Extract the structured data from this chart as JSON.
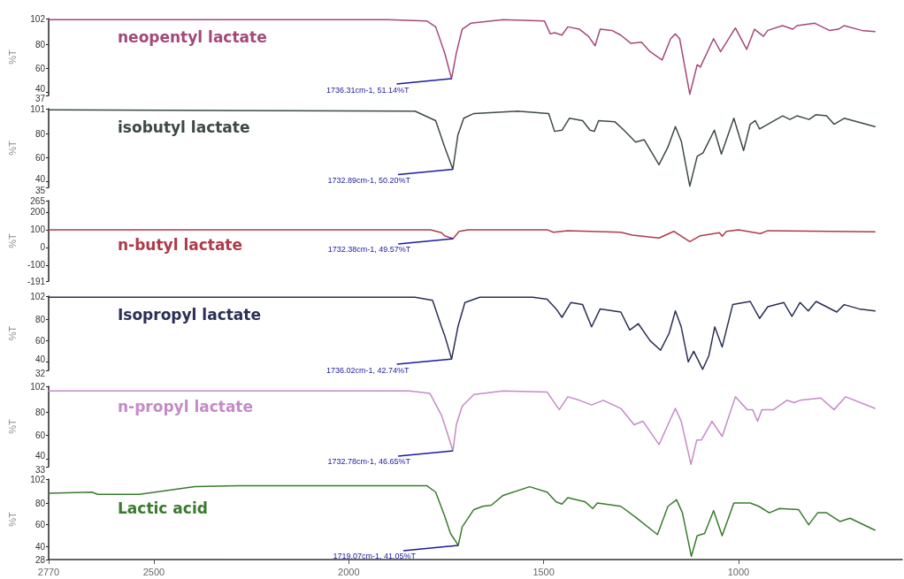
{
  "chart_data": [
    {
      "type": "line",
      "ylabel": "%T",
      "marker": "none",
      "grid": false,
      "tick_labels": "y",
      "xticks": [
        2770,
        2500,
        2000,
        1500,
        1000
      ],
      "ylim": [
        37,
        102
      ],
      "yticks": [
        37,
        40,
        60,
        80,
        102
      ],
      "series": [
        {
          "name": "neopentyl lactate",
          "color": "#a3497a",
          "x": [
            2770,
            1900,
            1800,
            1777,
            1754,
            1736.31,
            1724,
            1709,
            1687,
            1604,
            1498,
            1483,
            1472,
            1453,
            1438,
            1408,
            1385,
            1368,
            1355,
            1325,
            1302,
            1276,
            1249,
            1227,
            1196,
            1174,
            1162,
            1151,
            1125,
            1106,
            1098,
            1064,
            1046,
            1008,
            979,
            959,
            936,
            925,
            887,
            861,
            850,
            804,
            767,
            744,
            729,
            684,
            650
          ],
          "values": [
            101,
            101,
            100,
            95,
            73,
            51.14,
            73,
            93,
            98,
            101,
            100,
            89,
            90,
            88,
            95,
            93,
            87,
            79,
            93,
            92,
            88,
            81,
            82,
            74,
            67,
            85,
            89,
            85,
            38,
            63,
            61,
            85,
            74,
            94,
            76,
            93,
            87,
            92,
            96,
            93,
            96,
            98,
            92,
            93,
            96,
            92,
            91
          ]
        }
      ],
      "annotations": [
        {
          "text": "1736.31cm-1, 51.14%T",
          "x": 1736.31,
          "y": 51.14
        }
      ]
    },
    {
      "type": "line",
      "ylabel": "%T",
      "marker": "none",
      "grid": false,
      "tick_labels": "y",
      "xticks": [
        2770,
        2500,
        2000,
        1500,
        1000
      ],
      "ylim": [
        35,
        101
      ],
      "yticks": [
        35,
        40,
        60,
        80,
        101
      ],
      "series": [
        {
          "name": "isobutyl lactate",
          "color": "#3d4a44",
          "x": [
            2770,
            1830,
            1777,
            1754,
            1732.89,
            1720,
            1705,
            1679,
            1566,
            1487,
            1472,
            1453,
            1434,
            1400,
            1381,
            1370,
            1359,
            1317,
            1294,
            1264,
            1242,
            1204,
            1181,
            1162,
            1147,
            1125,
            1106,
            1091,
            1062,
            1044,
            1012,
            987,
            970,
            957,
            946,
            887,
            868,
            850,
            819,
            801,
            774,
            755,
            729,
            650
          ],
          "values": [
            100,
            99,
            91,
            69,
            50.2,
            79,
            93,
            97,
            99,
            97,
            82,
            83,
            93,
            91,
            83,
            82,
            91,
            90,
            83,
            73,
            75,
            54,
            69,
            86,
            74,
            36,
            61,
            64,
            83,
            63,
            93,
            66,
            88,
            91,
            84,
            95,
            92,
            95,
            92,
            96,
            95,
            88,
            93,
            86
          ]
        }
      ],
      "annotations": [
        {
          "text": "1732.89cm-1, 50.20%T",
          "x": 1732.89,
          "y": 50.2
        }
      ]
    },
    {
      "type": "line",
      "ylabel": "%T",
      "marker": "none",
      "grid": false,
      "tick_labels": "y",
      "xticks": [
        2770,
        2500,
        2000,
        1500,
        1000
      ],
      "ylim": [
        -191,
        265
      ],
      "yticks": [
        -191,
        -100,
        0,
        100,
        200,
        265
      ],
      "series": [
        {
          "name": "n-butyl lactate",
          "color": "#b03a4a",
          "x": [
            2770,
            1790,
            1762,
            1754,
            1732.38,
            1717,
            1694,
            1491,
            1475,
            1438,
            1302,
            1272,
            1204,
            1166,
            1125,
            1098,
            1049,
            1042,
            1031,
            1000,
            944,
            925,
            650
          ],
          "values": [
            100,
            100,
            83,
            66,
            49.57,
            91,
            100,
            100,
            86,
            95,
            86,
            70,
            53,
            91,
            33,
            66,
            83,
            63,
            91,
            100,
            78,
            95,
            88
          ]
        }
      ],
      "annotations": [
        {
          "text": "1732.38cm-1, 49.57%T",
          "x": 1732.38,
          "y": 49.57
        }
      ]
    },
    {
      "type": "line",
      "ylabel": "%T",
      "marker": "none",
      "grid": false,
      "tick_labels": "y",
      "xticks": [
        2770,
        2500,
        2000,
        1500,
        1000
      ],
      "ylim": [
        32,
        102
      ],
      "yticks": [
        32,
        40,
        60,
        80,
        102
      ],
      "series": [
        {
          "name": "Isopropyl lactate",
          "color": "#2a2f55",
          "x": [
            2770,
            1830,
            1785,
            1762,
            1754,
            1736.02,
            1720,
            1702,
            1664,
            1528,
            1491,
            1468,
            1453,
            1430,
            1400,
            1377,
            1355,
            1302,
            1279,
            1257,
            1227,
            1200,
            1178,
            1162,
            1147,
            1129,
            1115,
            1092,
            1076,
            1061,
            1042,
            1015,
            970,
            946,
            925,
            884,
            863,
            842,
            821,
            801,
            748,
            729,
            691,
            650
          ],
          "values": [
            101,
            101,
            98,
            73,
            65,
            42.74,
            73,
            96,
            101,
            101,
            99,
            90,
            82,
            96,
            94,
            73,
            90,
            87,
            70,
            76,
            60,
            51,
            67,
            88,
            73,
            40,
            50,
            33,
            46,
            73,
            54,
            94,
            97,
            81,
            92,
            96,
            83,
            96,
            88,
            97,
            87,
            94,
            90,
            88
          ]
        }
      ],
      "annotations": [
        {
          "text": "1736.02cm-1, 42.74%T",
          "x": 1736.02,
          "y": 42.74
        }
      ]
    },
    {
      "type": "line",
      "ylabel": "%T",
      "marker": "none",
      "grid": false,
      "tick_labels": "y",
      "xticks": [
        2770,
        2500,
        2000,
        1500,
        1000
      ],
      "ylim": [
        33,
        102
      ],
      "yticks": [
        33,
        40,
        60,
        80,
        102
      ],
      "series": [
        {
          "name": "n-propyl lactate",
          "color": "#c58ac8",
          "x": [
            2770,
            1845,
            1792,
            1762,
            1754,
            1732.78,
            1724,
            1709,
            1679,
            1604,
            1491,
            1460,
            1438,
            1408,
            1377,
            1347,
            1302,
            1268,
            1245,
            1204,
            1181,
            1162,
            1147,
            1122,
            1107,
            1095,
            1068,
            1042,
            1008,
            978,
            964,
            951,
            940,
            910,
            876,
            857,
            842,
            789,
            755,
            725,
            650
          ],
          "values": [
            98,
            98,
            96,
            77,
            69,
            46.65,
            69,
            85,
            95,
            98,
            97,
            82,
            93,
            90,
            86,
            90,
            83,
            69,
            72,
            52,
            69,
            83,
            72,
            35,
            56,
            56,
            72,
            59,
            93,
            82,
            82,
            72,
            82,
            82,
            90,
            88,
            90,
            92,
            82,
            93,
            83
          ]
        }
      ],
      "annotations": [
        {
          "text": "1732.78cm-1, 46.65%T",
          "x": 1732.78,
          "y": 46.65
        }
      ]
    },
    {
      "type": "line",
      "ylabel": "%T",
      "marker": "none",
      "grid": false,
      "xlim": [
        2770,
        580
      ],
      "xticks": [
        2770,
        2500,
        2000,
        1500,
        1000
      ],
      "ylim": [
        28,
        102
      ],
      "yticks": [
        28,
        40,
        60,
        80,
        102
      ],
      "series": [
        {
          "name": "Lactic acid",
          "color": "#3a7a2e",
          "x": [
            2770,
            2659,
            2644,
            2538,
            2395,
            2282,
            2094,
            1800,
            1777,
            1754,
            1739,
            1719.07,
            1709,
            1679,
            1656,
            1634,
            1604,
            1536,
            1491,
            1468,
            1453,
            1438,
            1393,
            1374,
            1362,
            1302,
            1264,
            1208,
            1181,
            1159,
            1144,
            1121,
            1106,
            1087,
            1064,
            1042,
            1012,
            970,
            948,
            921,
            895,
            846,
            820,
            797,
            774,
            740,
            714,
            650
          ],
          "values": [
            89,
            90,
            88,
            88,
            95,
            96,
            96,
            96,
            90,
            68,
            52,
            41.05,
            58,
            74,
            77,
            78,
            87,
            95,
            90,
            81,
            79,
            85,
            81,
            75,
            80,
            77,
            67,
            51,
            77,
            83,
            71,
            31,
            50,
            52,
            73,
            50,
            80,
            80,
            77,
            71,
            75,
            74,
            60,
            71,
            71,
            63,
            66,
            55
          ]
        }
      ],
      "annotations": [
        {
          "text": "1719.07cm-1, 41.05%T",
          "x": 1719.07,
          "y": 41.05
        }
      ]
    }
  ]
}
